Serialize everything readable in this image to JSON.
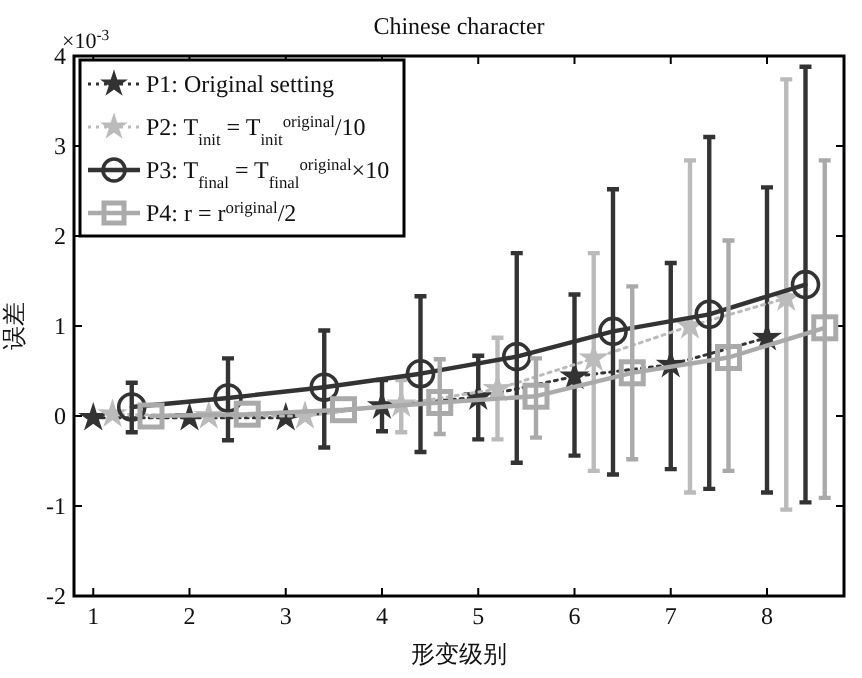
{
  "chart_data": {
    "type": "line",
    "title": "Chinese character",
    "xlabel": "形变级别",
    "ylabel": "误差",
    "annotations": [
      "×10$^{-3}$"
    ],
    "xlim": [
      0.8,
      8.8
    ],
    "ylim": [
      -2,
      4
    ],
    "xticks": [
      1,
      2,
      3,
      4,
      5,
      6,
      7,
      8
    ],
    "yticks": [
      -2,
      -1,
      0,
      1,
      2,
      3,
      4
    ],
    "legend": "top left",
    "grid": false,
    "series": [
      {
        "name": "P1: Original setting",
        "color": "#333333",
        "marker": "star",
        "line_style": "dotted",
        "x": [
          1,
          2,
          3,
          4,
          5,
          6,
          7,
          8
        ],
        "values": [
          -0.02,
          -0.02,
          -0.02,
          0.11,
          0.21,
          0.44,
          0.57,
          0.87
        ],
        "errors": [
          null,
          null,
          null,
          [
            -0.17,
            0.4
          ],
          [
            -0.26,
            0.67
          ],
          [
            -0.44,
            1.35
          ],
          [
            -0.59,
            1.7
          ],
          [
            -0.85,
            2.54
          ]
        ]
      },
      {
        "name": "P2: T$_{init}$ = T$_{init}$$^{original}$/10",
        "color": "#bbbbbb",
        "marker": "star",
        "line_style": "dotted",
        "x": [
          1.2,
          2.2,
          3.2,
          4.2,
          5.2,
          6.2,
          7.2,
          8.2
        ],
        "values": [
          0.02,
          0.0,
          0.0,
          0.13,
          0.3,
          0.64,
          1.0,
          1.31
        ],
        "errors": [
          null,
          null,
          null,
          [
            -0.18,
            0.4
          ],
          [
            -0.26,
            0.87
          ],
          [
            -0.61,
            1.81
          ],
          [
            -0.85,
            2.84
          ],
          [
            -1.04,
            3.74
          ]
        ]
      },
      {
        "name": "P3: T$_{final}$ = T$_{final}$$^{original}$×10",
        "color": "#333333",
        "marker": "circle",
        "line_style": "solid",
        "x": [
          1.4,
          2.4,
          3.4,
          4.4,
          5.4,
          6.4,
          7.4,
          8.4
        ],
        "values": [
          0.1,
          0.2,
          0.32,
          0.47,
          0.66,
          0.94,
          1.13,
          1.46
        ],
        "errors": [
          [
            -0.18,
            0.37
          ],
          [
            -0.27,
            0.64
          ],
          [
            -0.35,
            0.95
          ],
          [
            -0.4,
            1.33
          ],
          [
            -0.52,
            1.81
          ],
          [
            -0.65,
            2.52
          ],
          [
            -0.81,
            3.1
          ],
          [
            -0.96,
            3.88
          ]
        ]
      },
      {
        "name": "P4: r = r$^{original}$/2",
        "color": "#aaaaaa",
        "marker": "square",
        "line_style": "solid",
        "x": [
          1.6,
          2.6,
          3.6,
          4.6,
          5.6,
          6.6,
          7.6,
          8.6
        ],
        "values": [
          0.0,
          0.02,
          0.07,
          0.15,
          0.22,
          0.48,
          0.65,
          0.98
        ],
        "errors": [
          null,
          null,
          null,
          [
            -0.2,
            0.63
          ],
          [
            -0.24,
            0.64
          ],
          [
            -0.48,
            1.44
          ],
          [
            -0.61,
            1.95
          ],
          [
            -0.91,
            2.84
          ]
        ]
      }
    ]
  }
}
